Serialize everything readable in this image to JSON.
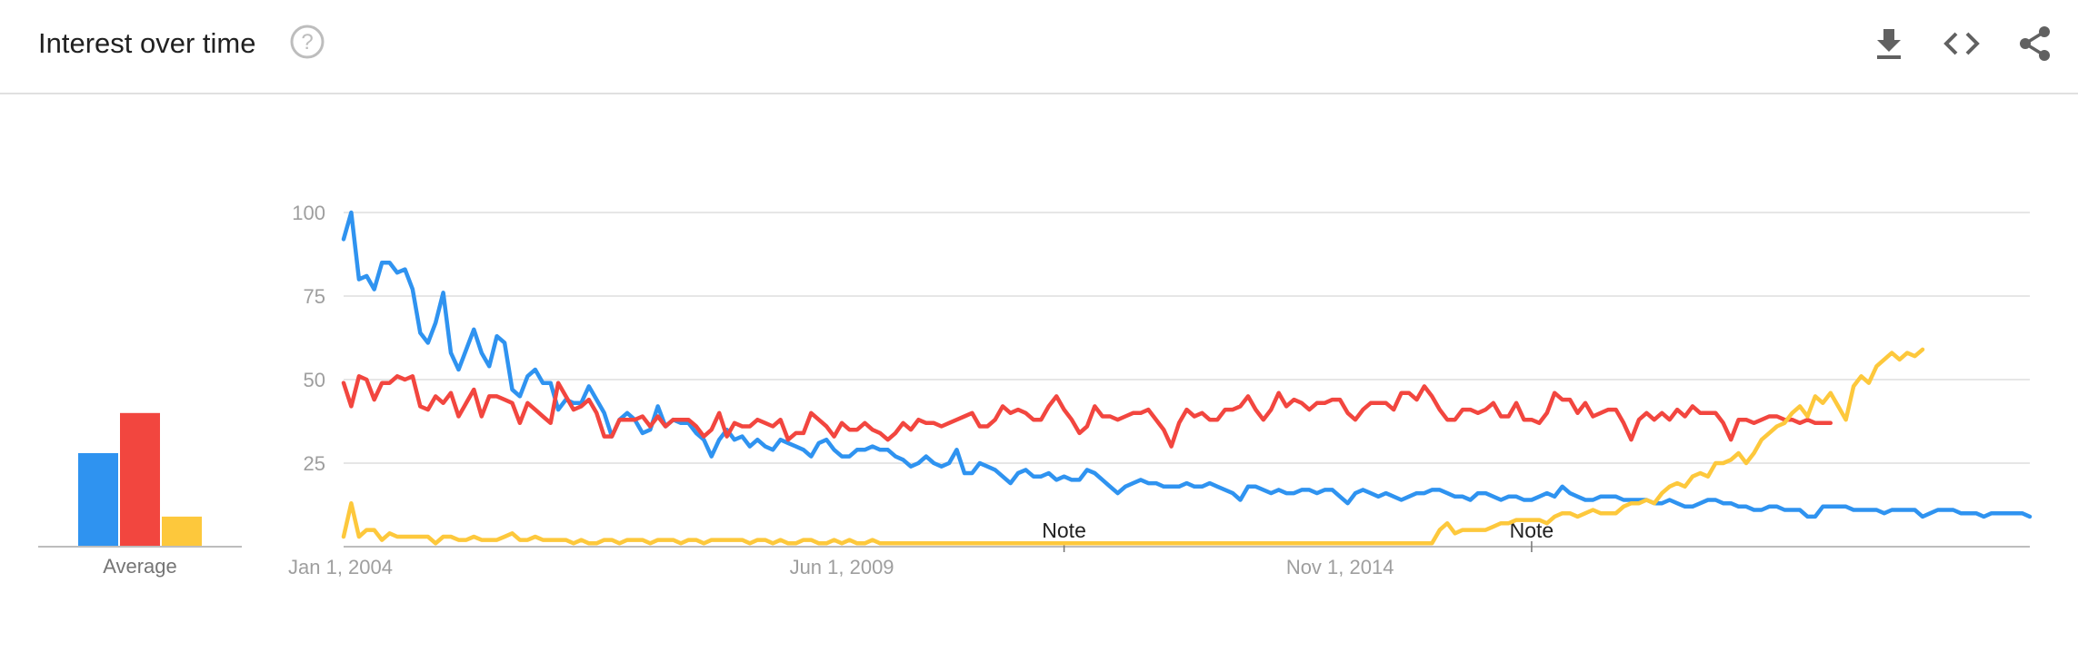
{
  "header": {
    "title": "Interest over time",
    "icons": [
      "help-icon",
      "download-icon",
      "embed-code-icon",
      "share-icon"
    ]
  },
  "colors": {
    "blue": "#2f93f0",
    "red": "#f2463f",
    "yellow": "#fdc83c",
    "grid": "#dedede",
    "tick": "#9e9e9e"
  },
  "average": {
    "label": "Average",
    "values": [
      28,
      40,
      9
    ]
  },
  "notes": [
    "Note",
    "Note"
  ],
  "chart_data": {
    "type": "line",
    "x_tick_labels": [
      "Jan 1, 2004",
      "Jun 1, 2009",
      "Nov 1, 2014"
    ],
    "y_tick_labels": [
      "100",
      "75",
      "50",
      "25"
    ],
    "ylim": [
      0,
      100
    ],
    "x_range": [
      "2004-01",
      "2019-10"
    ],
    "grid": true,
    "series": [
      {
        "color": "#2f93f0",
        "values": [
          92,
          100,
          80,
          81,
          77,
          85,
          85,
          82,
          83,
          77,
          64,
          61,
          67,
          76,
          58,
          53,
          59,
          65,
          58,
          54,
          63,
          61,
          47,
          45,
          51,
          53,
          49,
          49,
          41,
          44,
          43,
          43,
          48,
          44,
          40,
          33,
          38,
          40,
          38,
          34,
          35,
          42,
          36,
          38,
          37,
          37,
          34,
          32,
          27,
          32,
          35,
          32,
          33,
          30,
          32,
          30,
          29,
          32,
          31,
          30,
          29,
          27,
          31,
          32,
          29,
          27,
          27,
          29,
          29,
          30,
          29,
          29,
          27,
          26,
          24,
          25,
          27,
          25,
          24,
          25,
          29,
          22,
          22,
          25,
          24,
          23,
          21,
          19,
          22,
          23,
          21,
          21,
          22,
          20,
          21,
          20,
          20,
          23,
          22,
          20,
          18,
          16,
          18,
          19,
          20,
          19,
          19,
          18,
          18,
          18,
          19,
          18,
          18,
          19,
          18,
          17,
          16,
          14,
          18,
          18,
          17,
          16,
          17,
          16,
          16,
          17,
          17,
          16,
          17,
          17,
          15,
          13,
          16,
          17,
          16,
          15,
          16,
          15,
          14,
          15,
          16,
          16,
          17,
          17,
          16,
          15,
          15,
          14,
          16,
          16,
          15,
          14,
          15,
          15,
          14,
          14,
          15,
          16,
          15,
          18,
          16,
          15,
          14,
          14,
          15,
          15,
          15,
          14,
          14,
          14,
          14,
          13,
          13,
          14,
          13,
          12,
          12,
          13,
          14,
          14,
          13,
          13,
          12,
          12,
          11,
          11,
          12,
          12,
          11,
          11,
          11,
          9,
          9,
          12,
          12,
          12,
          12,
          11,
          11,
          11,
          11,
          10,
          11,
          11,
          11,
          11,
          9,
          10,
          11,
          11,
          11,
          10,
          10,
          10,
          9,
          10,
          10,
          10,
          10,
          10,
          9
        ],
        "smooth": true
      },
      {
        "color": "#f2463f",
        "values": [
          49,
          42,
          51,
          50,
          44,
          49,
          49,
          51,
          50,
          51,
          42,
          41,
          45,
          43,
          46,
          39,
          43,
          47,
          39,
          45,
          45,
          44,
          43,
          37,
          43,
          41,
          39,
          37,
          49,
          45,
          41,
          42,
          44,
          40,
          33,
          33,
          38,
          38,
          38,
          39,
          36,
          39,
          36,
          38,
          38,
          38,
          36,
          33,
          35,
          40,
          33,
          37,
          36,
          36,
          38,
          37,
          36,
          38,
          32,
          34,
          34,
          40,
          38,
          36,
          33,
          37,
          35,
          35,
          37,
          35,
          34,
          32,
          34,
          37,
          35,
          38,
          37,
          37,
          36,
          37,
          38,
          39,
          40,
          36,
          36,
          38,
          42,
          40,
          41,
          40,
          38,
          38,
          42,
          45,
          41,
          38,
          34,
          36,
          42,
          39,
          39,
          38,
          39,
          40,
          40,
          41,
          38,
          35,
          30,
          37,
          41,
          39,
          40,
          38,
          38,
          41,
          41,
          42,
          45,
          41,
          38,
          41,
          46,
          42,
          44,
          43,
          41,
          43,
          43,
          44,
          44,
          40,
          38,
          41,
          43,
          43,
          43,
          41,
          46,
          46,
          44,
          48,
          45,
          41,
          38,
          38,
          41,
          41,
          40,
          41,
          43,
          39,
          39,
          43,
          38,
          38,
          37,
          40,
          46,
          44,
          44,
          40,
          43,
          39,
          40,
          41,
          41,
          37,
          32,
          38,
          40,
          38,
          40,
          38,
          41,
          39,
          42,
          40,
          40,
          40,
          37,
          32,
          38,
          38,
          37,
          38,
          39,
          39,
          38,
          38,
          37,
          38,
          37,
          37,
          37
        ],
        "smooth": true
      },
      {
        "color": "#fdc83c",
        "values": [
          3,
          13,
          3,
          5,
          5,
          2,
          4,
          3,
          3,
          3,
          3,
          3,
          1,
          3,
          3,
          2,
          2,
          3,
          2,
          2,
          2,
          3,
          4,
          2,
          2,
          3,
          2,
          2,
          2,
          2,
          1,
          2,
          1,
          1,
          2,
          2,
          1,
          2,
          2,
          2,
          1,
          2,
          2,
          2,
          1,
          2,
          2,
          1,
          2,
          2,
          2,
          2,
          2,
          1,
          2,
          2,
          1,
          2,
          1,
          1,
          2,
          2,
          1,
          1,
          2,
          1,
          2,
          1,
          1,
          2,
          1,
          1,
          1,
          1,
          1,
          1,
          1,
          1,
          1,
          1,
          1,
          1,
          1,
          1,
          1,
          1,
          1,
          1,
          1,
          1,
          1,
          1,
          1,
          1,
          1,
          1,
          1,
          1,
          1,
          1,
          1,
          1,
          1,
          1,
          1,
          1,
          1,
          1,
          1,
          1,
          1,
          1,
          1,
          1,
          1,
          1,
          1,
          1,
          1,
          1,
          1,
          1,
          1,
          1,
          1,
          1,
          1,
          1,
          1,
          1,
          1,
          1,
          1,
          1,
          1,
          1,
          1,
          1,
          1,
          1,
          1,
          1,
          1,
          5,
          7,
          4,
          5,
          5,
          5,
          5,
          6,
          7,
          7,
          8,
          8,
          8,
          8,
          7,
          9,
          10,
          10,
          9,
          10,
          11,
          10,
          10,
          10,
          12,
          13,
          13,
          14,
          13,
          16,
          18,
          19,
          18,
          21,
          22,
          21,
          25,
          25,
          26,
          28,
          25,
          28,
          32,
          34,
          36,
          37,
          40,
          42,
          39,
          45,
          43,
          46,
          42,
          38,
          48,
          51,
          49,
          54,
          56,
          58,
          56,
          58,
          57,
          59
        ],
        "smooth": true
      }
    ]
  }
}
